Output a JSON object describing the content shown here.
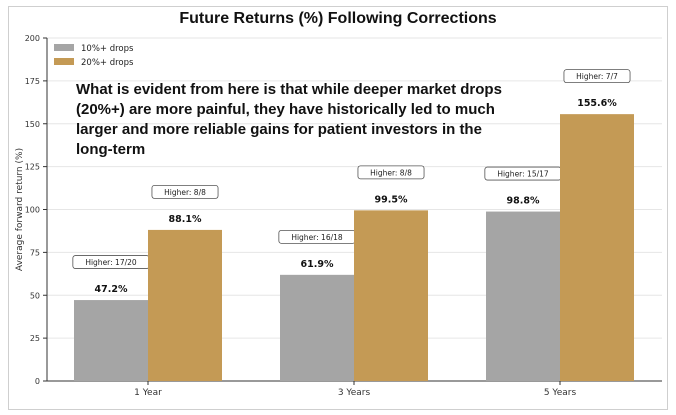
{
  "chart_data": {
    "type": "bar",
    "title": "Future Returns (%) Following Corrections",
    "ylabel": "Average forward return (%)",
    "xlabel": "",
    "categories": [
      "1 Year",
      "3 Years",
      "5 Years"
    ],
    "ylim": [
      0,
      200
    ],
    "yticks": [
      "0",
      "25",
      "50",
      "75",
      "100",
      "125",
      "150",
      "175",
      "200"
    ],
    "grid": true,
    "legend_position": "top-left",
    "series": [
      {
        "name": "10%+ drops",
        "color": "#a5a5a5",
        "values": [
          47.2,
          61.9,
          98.8
        ],
        "labels": [
          "47.2%",
          "61.9%",
          "98.8%"
        ],
        "annotations": [
          "Higher: 17/20",
          "Higher: 16/18",
          "Higher: 15/17"
        ]
      },
      {
        "name": "20%+ drops",
        "color": "#c49a55",
        "values": [
          88.1,
          99.5,
          155.6
        ],
        "labels": [
          "88.1%",
          "99.5%",
          "155.6%"
        ],
        "annotations": [
          "Higher: 8/8",
          "Higher: 8/8",
          "Higher: 7/7"
        ]
      }
    ],
    "overlay_text": "What is evident from here is that while deeper market drops (20%+) are more painful, they have historically led to much larger and more reliable gains for patient investors in the long-term"
  }
}
